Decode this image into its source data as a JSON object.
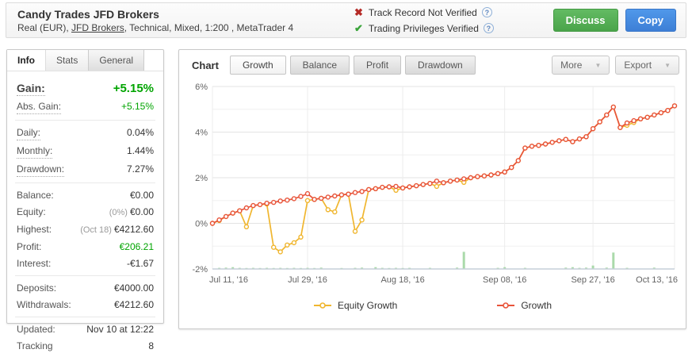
{
  "header": {
    "title": "Candy Trades JFD Brokers",
    "subtitle_prefix": "Real (EUR), ",
    "broker_link": "JFD Brokers",
    "subtitle_suffix": ", Technical, Mixed, 1:200 , MetaTrader 4",
    "verifications": [
      {
        "label": "Track Record Not Verified",
        "status": "not_verified"
      },
      {
        "label": "Trading Privileges Verified",
        "status": "verified"
      }
    ],
    "discuss_label": "Discuss",
    "copy_label": "Copy"
  },
  "icons": {
    "not_verified": "✖",
    "verified": "✔",
    "help": "?",
    "dropdown": "▼"
  },
  "info_panel": {
    "tabs": [
      {
        "label": "Info",
        "active": true
      },
      {
        "label": "Stats",
        "active": false
      },
      {
        "label": "General",
        "active": false
      }
    ],
    "rows": [
      {
        "label": "Gain:",
        "value": "+5.15%"
      },
      {
        "label": "Abs. Gain:",
        "value": "+5.15%"
      },
      {
        "label": "Daily:",
        "value": "0.04%"
      },
      {
        "label": "Monthly:",
        "value": "1.44%"
      },
      {
        "label": "Drawdown:",
        "value": "7.27%"
      },
      {
        "label": "Balance:",
        "value": "€0.00"
      },
      {
        "label": "Equity:",
        "pre": "(0%)",
        "value": "€0.00"
      },
      {
        "label": "Highest:",
        "pre": "(Oct 18)",
        "value": "€4212.60"
      },
      {
        "label": "Profit:",
        "value": "€206.21"
      },
      {
        "label": "Interest:",
        "value": "-€1.67"
      },
      {
        "label": "Deposits:",
        "value": "€4000.00"
      },
      {
        "label": "Withdrawals:",
        "value": "€4212.60"
      },
      {
        "label": "Updated:",
        "value": "Nov 10 at 12:22"
      },
      {
        "label": "Tracking",
        "value": "8"
      }
    ]
  },
  "chart_panel": {
    "main_tab": "Chart",
    "tabs": [
      {
        "label": "Growth",
        "active": true
      },
      {
        "label": "Balance",
        "active": false
      },
      {
        "label": "Profit",
        "active": false
      },
      {
        "label": "Drawdown",
        "active": false
      }
    ],
    "more_label": "More",
    "export_label": "Export"
  },
  "colors": {
    "gain_green": "#00a400",
    "growth_line": "#e8543a",
    "equity_line": "#f0b62f",
    "lots_bars": "#aadaaa",
    "discuss_green": "#4aa44a",
    "copy_blue": "#3d7fd6"
  },
  "chart_data": {
    "type": "line",
    "title": "",
    "ylim": [
      -2,
      6
    ],
    "ytick_labels": [
      "6%",
      "4%",
      "2%",
      "0%",
      "-2%"
    ],
    "xtick_labels": [
      "Jul 11, '16",
      "Jul 29, '16",
      "Aug 18, '16",
      "Sep 08, '16",
      "Sep 27, '16",
      "Oct 13, '16"
    ],
    "xtick_index": [
      0,
      14,
      28,
      43,
      56,
      68
    ],
    "legend": [
      "Equity Growth",
      "Growth"
    ],
    "legend_position": "bottom",
    "grid": true,
    "x": [
      "Jul 11",
      "Jul 12",
      "Jul 13",
      "Jul 14",
      "Jul 15",
      "Jul 18",
      "Jul 19",
      "Jul 20",
      "Jul 21",
      "Jul 22",
      "Jul 25",
      "Jul 26",
      "Jul 27",
      "Jul 28",
      "Jul 29",
      "Aug 1",
      "Aug 2",
      "Aug 3",
      "Aug 4",
      "Aug 5",
      "Aug 8",
      "Aug 9",
      "Aug 10",
      "Aug 11",
      "Aug 12",
      "Aug 15",
      "Aug 16",
      "Aug 17",
      "Aug 18",
      "Aug 19",
      "Aug 22",
      "Aug 23",
      "Aug 24",
      "Aug 25",
      "Aug 26",
      "Aug 29",
      "Aug 30",
      "Aug 31",
      "Sep 1",
      "Sep 2",
      "Sep 5",
      "Sep 6",
      "Sep 7",
      "Sep 8",
      "Sep 9",
      "Sep 12",
      "Sep 13",
      "Sep 14",
      "Sep 15",
      "Sep 16",
      "Sep 19",
      "Sep 20",
      "Sep 21",
      "Sep 22",
      "Sep 23",
      "Sep 26",
      "Sep 27",
      "Sep 28",
      "Sep 29",
      "Sep 30",
      "Oct 3",
      "Oct 4",
      "Oct 5",
      "Oct 6",
      "Oct 7",
      "Oct 10",
      "Oct 11",
      "Oct 12",
      "Oct 13"
    ],
    "series": [
      {
        "name": "Equity Growth",
        "color": "#f0b62f",
        "values": [
          0.0,
          0.12,
          0.3,
          0.45,
          0.55,
          -0.15,
          0.78,
          0.82,
          0.85,
          -1.05,
          -1.25,
          -0.95,
          -0.85,
          -0.6,
          1.0,
          1.05,
          1.1,
          0.6,
          0.5,
          1.25,
          1.28,
          -0.35,
          0.15,
          1.48,
          1.52,
          1.58,
          1.6,
          1.45,
          1.55,
          1.6,
          1.65,
          1.7,
          1.75,
          1.62,
          1.78,
          1.85,
          1.9,
          1.8,
          2.0,
          2.05,
          2.08,
          2.12,
          2.18,
          2.25,
          2.45,
          2.75,
          3.3,
          3.38,
          3.42,
          3.48,
          3.55,
          3.62,
          3.68,
          3.58,
          3.7,
          3.8,
          4.15,
          4.45,
          4.75,
          5.1,
          4.2,
          4.3,
          4.42,
          4.58,
          4.65,
          4.75,
          4.85,
          4.95,
          5.15
        ]
      },
      {
        "name": "Growth",
        "color": "#e8543a",
        "values": [
          0.0,
          0.15,
          0.3,
          0.45,
          0.55,
          0.68,
          0.78,
          0.82,
          0.88,
          0.92,
          0.98,
          1.02,
          1.08,
          1.18,
          1.3,
          1.05,
          1.1,
          1.15,
          1.2,
          1.25,
          1.28,
          1.35,
          1.4,
          1.48,
          1.52,
          1.58,
          1.6,
          1.62,
          1.55,
          1.6,
          1.65,
          1.7,
          1.75,
          1.85,
          1.78,
          1.85,
          1.9,
          1.95,
          2.0,
          2.05,
          2.08,
          2.12,
          2.18,
          2.25,
          2.45,
          2.75,
          3.3,
          3.38,
          3.42,
          3.48,
          3.55,
          3.62,
          3.68,
          3.58,
          3.7,
          3.8,
          4.15,
          4.45,
          4.75,
          5.1,
          4.2,
          4.4,
          4.5,
          4.58,
          4.65,
          4.75,
          4.85,
          4.95,
          5.15
        ]
      }
    ],
    "bars": {
      "name": "lots",
      "color": "#aadaaa",
      "values": [
        0,
        0.05,
        0.06,
        0.08,
        0.05,
        0.04,
        0.05,
        0.04,
        0.05,
        0.04,
        0.05,
        0.04,
        0.05,
        0.04,
        0.05,
        0.04,
        0.06,
        0,
        0,
        0.04,
        0,
        0.05,
        0.06,
        0,
        0.08,
        0.05,
        0.04,
        0.05,
        0.04,
        0.05,
        0,
        0,
        0.05,
        0,
        0,
        0,
        0.06,
        0.75,
        0,
        0,
        0,
        0,
        0.05,
        0.08,
        0,
        0,
        0.05,
        0,
        0,
        0,
        0,
        0,
        0.06,
        0.08,
        0.05,
        0.06,
        0.15,
        0,
        0.06,
        0.72,
        0,
        0.05,
        0,
        0,
        0,
        0.06,
        0,
        0,
        0
      ]
    }
  }
}
